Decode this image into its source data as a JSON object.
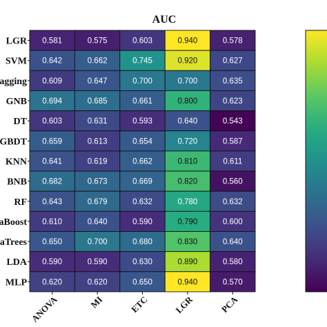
{
  "chart_data": {
    "type": "heatmap",
    "title": "AUC",
    "columns": [
      "ANOVA",
      "MI",
      "ETC",
      "LGR",
      "PCA"
    ],
    "rows": [
      "LGR",
      "SVM",
      "agging",
      "GNB",
      "DT",
      "GBDT",
      "KNN",
      "BNB",
      "RF",
      "aBoost",
      "aTrees",
      "LDA",
      "MLP"
    ],
    "values": [
      [
        0.581,
        0.575,
        0.603,
        0.94,
        0.578
      ],
      [
        0.642,
        0.662,
        0.745,
        0.92,
        0.627
      ],
      [
        0.609,
        0.647,
        0.7,
        0.7,
        0.635
      ],
      [
        0.694,
        0.685,
        0.661,
        0.8,
        0.623
      ],
      [
        0.603,
        0.631,
        0.593,
        0.64,
        0.543
      ],
      [
        0.659,
        0.613,
        0.654,
        0.72,
        0.587
      ],
      [
        0.641,
        0.619,
        0.662,
        0.81,
        0.611
      ],
      [
        0.682,
        0.673,
        0.669,
        0.82,
        0.56
      ],
      [
        0.643,
        0.679,
        0.632,
        0.78,
        0.632
      ],
      [
        0.61,
        0.64,
        0.59,
        0.79,
        0.6
      ],
      [
        0.65,
        0.7,
        0.68,
        0.83,
        0.64
      ],
      [
        0.59,
        0.59,
        0.63,
        0.89,
        0.58
      ],
      [
        0.62,
        0.62,
        0.65,
        0.94,
        0.57
      ]
    ],
    "labels": [
      [
        "0.581",
        "0.575",
        "0.603",
        "0.940",
        "0.578"
      ],
      [
        "0.642",
        "0.662",
        "0.745",
        "0.920",
        "0.627"
      ],
      [
        "0.609",
        "0.647",
        "0.700",
        "0.700",
        "0.635"
      ],
      [
        "0.694",
        "0.685",
        "0.661",
        "0.800",
        "0.623"
      ],
      [
        "0.603",
        "0.631",
        "0.593",
        "0.640",
        "0.543"
      ],
      [
        "0.659",
        "0.613",
        "0.654",
        "0.720",
        "0.587"
      ],
      [
        "0.641",
        "0.619",
        "0.662",
        "0.810",
        "0.611"
      ],
      [
        "0.682",
        "0.673",
        "0.669",
        "0.820",
        "0.560"
      ],
      [
        "0.643",
        "0.679",
        "0.632",
        "0.780",
        "0.632"
      ],
      [
        "0.610",
        "0.640",
        "0.590",
        "0.790",
        "0.600"
      ],
      [
        "0.650",
        "0.700",
        "0.680",
        "0.830",
        "0.640"
      ],
      [
        "0.590",
        "0.590",
        "0.630",
        "0.890",
        "0.580"
      ],
      [
        "0.620",
        "0.620",
        "0.650",
        "0.940",
        "0.570"
      ]
    ],
    "color_range": [
      0.54,
      0.94
    ],
    "colormap": "viridis",
    "colorbar": "right",
    "grid": false
  }
}
